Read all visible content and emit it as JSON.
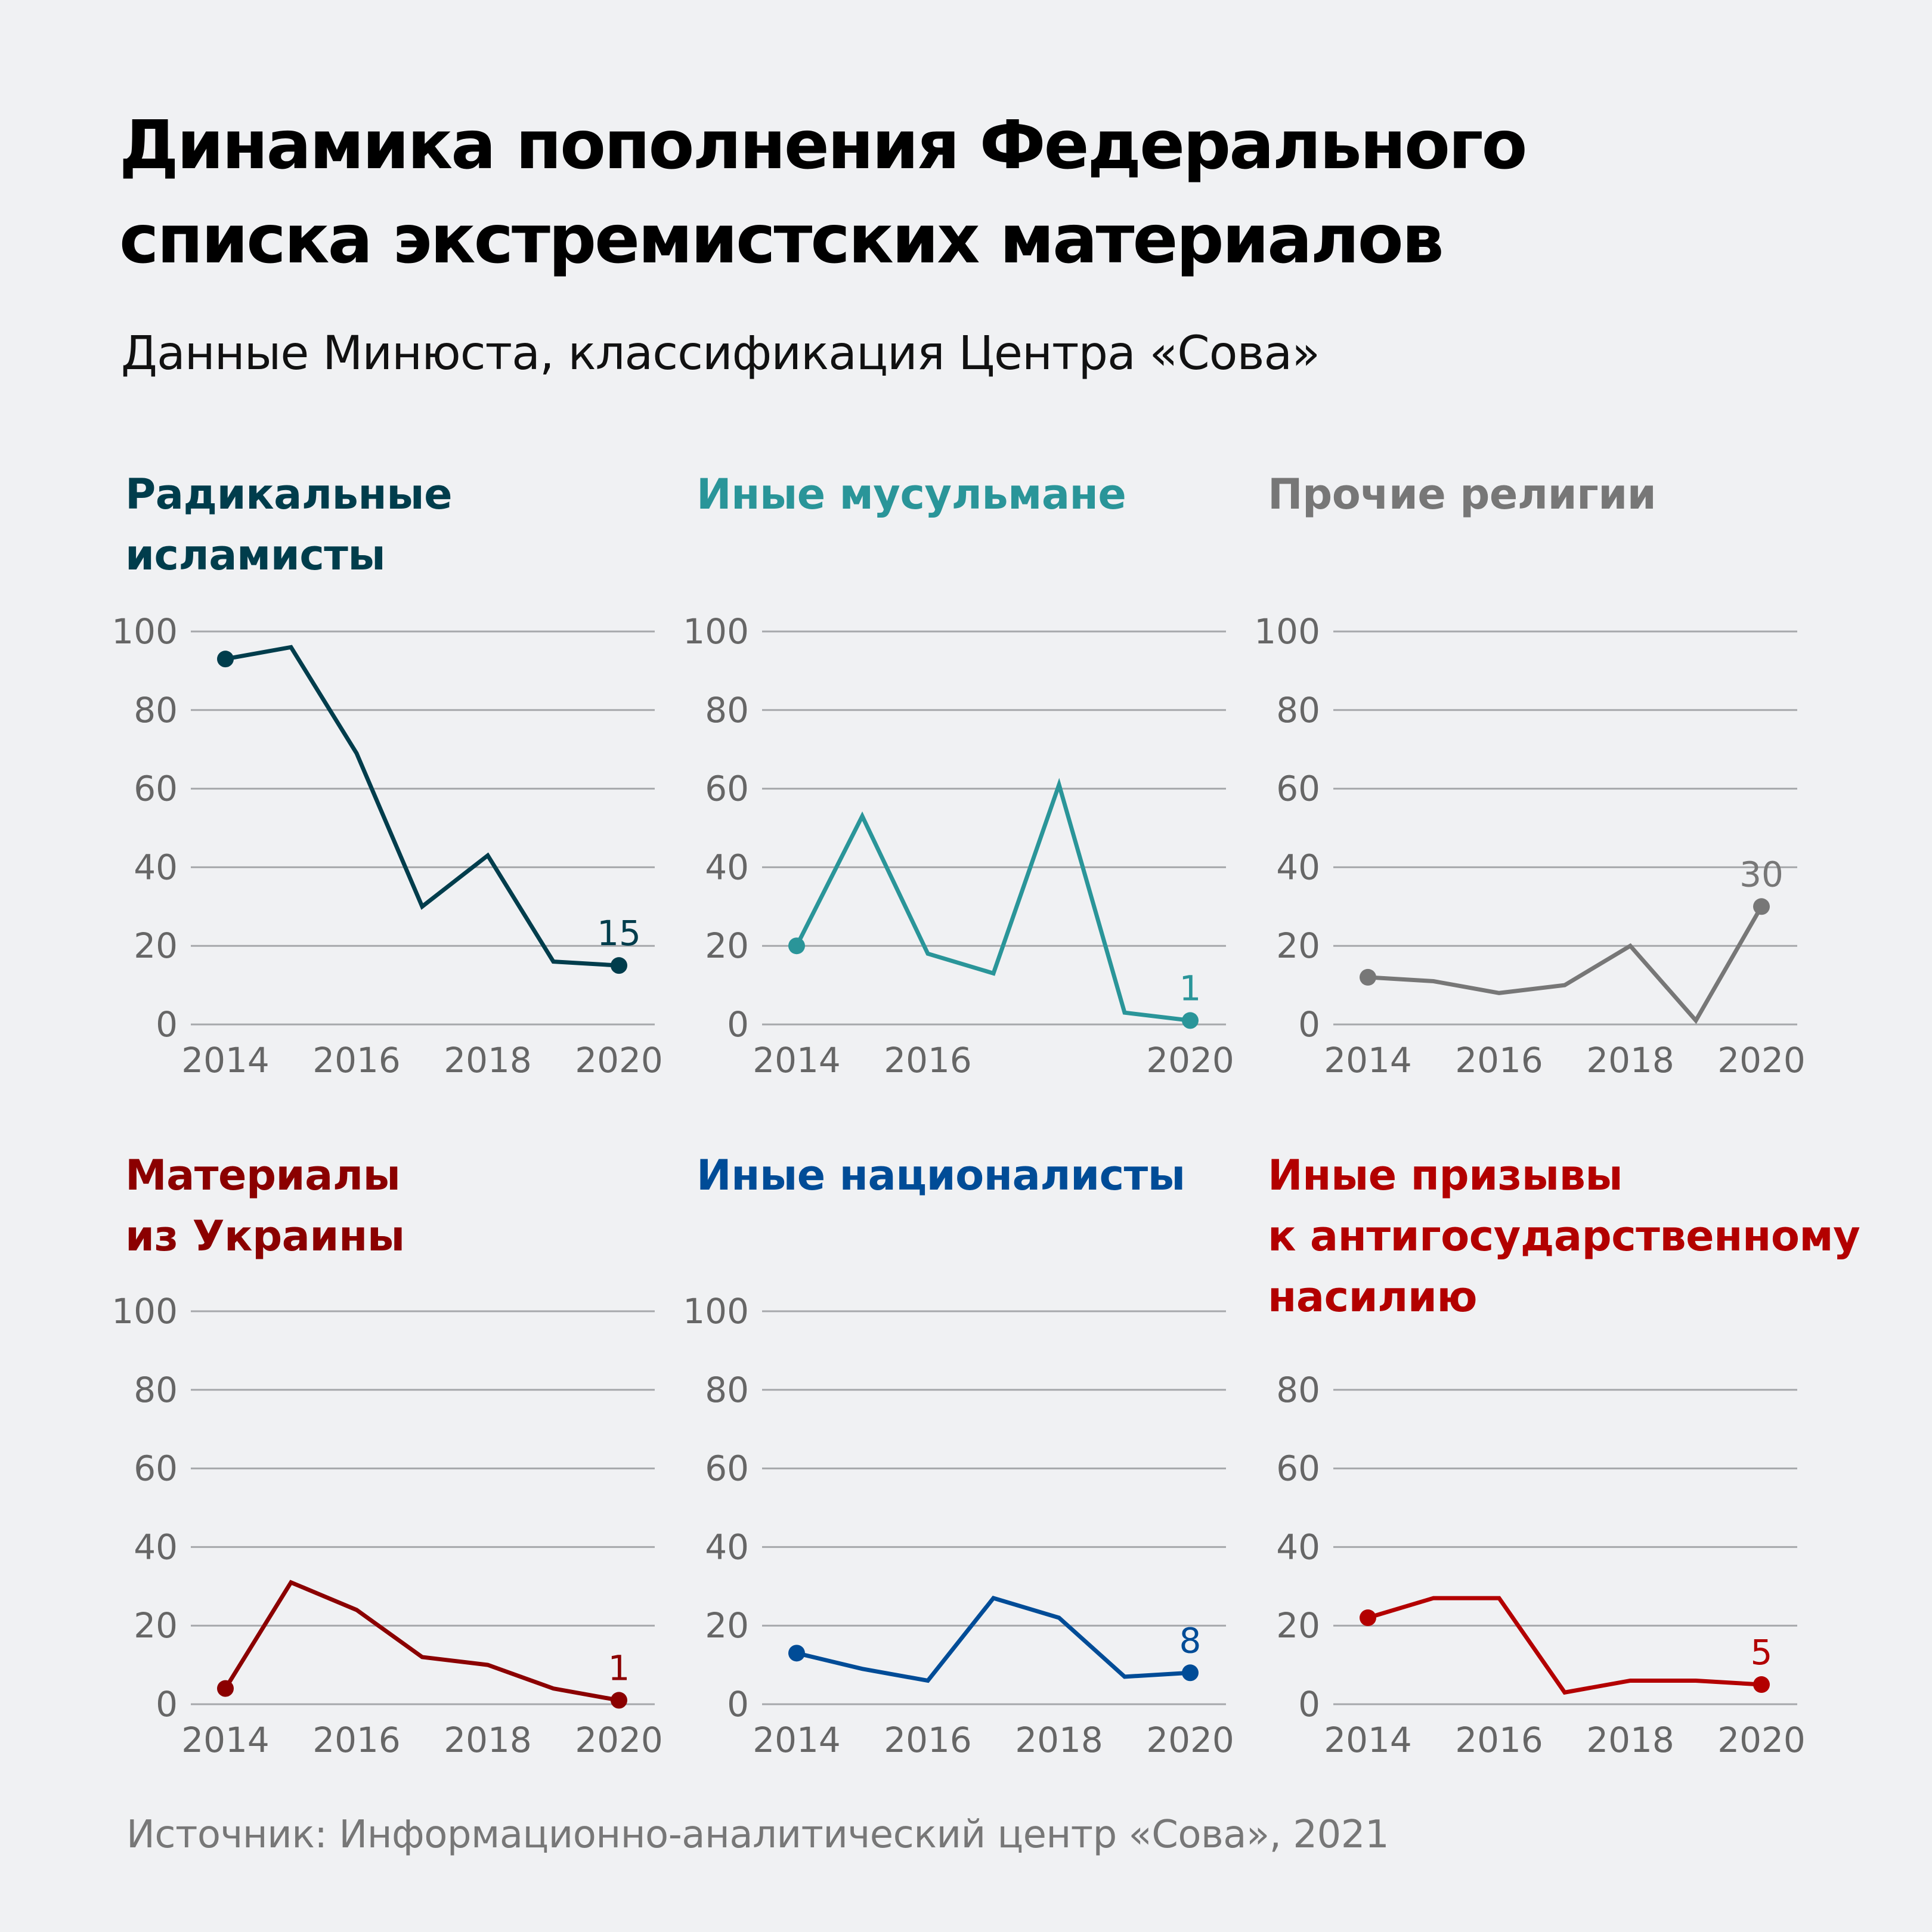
{
  "header": {
    "title_line1": "Динамика пополнения Федерального",
    "title_line2": "списка экстремистских материалов",
    "subtitle": "Данные Минюста, классификация Центра «Сова»"
  },
  "footer": {
    "source": "Источник: Информационно-аналитический центр «Сова», 2021"
  },
  "chart_data": [
    {
      "type": "line",
      "title": "Радикальные исламисты",
      "title_lines": [
        "Радикальные",
        "исламисты"
      ],
      "color": "#003d4c",
      "x": [
        2014,
        2015,
        2016,
        2017,
        2018,
        2019,
        2020
      ],
      "values": [
        93,
        96,
        69,
        30,
        43,
        16,
        15
      ],
      "end_label": "15",
      "xticks": [
        "2014",
        "2016",
        "2018",
        "2020"
      ],
      "yticks": [
        "0",
        "20",
        "40",
        "60",
        "80",
        "100"
      ],
      "ylim": [
        0,
        100
      ],
      "grid": true,
      "xlabel": "",
      "ylabel": ""
    },
    {
      "type": "line",
      "title": "Иные мусульмане",
      "title_lines": [
        "Иные мусульмане"
      ],
      "color": "#2a9599",
      "x": [
        2014,
        2015,
        2016,
        2017,
        2018,
        2019,
        2020
      ],
      "values": [
        20,
        53,
        18,
        13,
        61,
        3,
        1
      ],
      "end_label": "1",
      "xticks": [
        "2014",
        "2016",
        "",
        "2020"
      ],
      "yticks": [
        "0",
        "20",
        "40",
        "60",
        "80",
        "100"
      ],
      "ylim": [
        0,
        100
      ],
      "grid": true,
      "xlabel": "",
      "ylabel": ""
    },
    {
      "type": "line",
      "title": "Прочие религии",
      "title_lines": [
        "Прочие религии"
      ],
      "color": "#777777",
      "x": [
        2014,
        2015,
        2016,
        2017,
        2018,
        2019,
        2020
      ],
      "values": [
        12,
        11,
        8,
        10,
        20,
        1,
        30
      ],
      "end_label": "30",
      "xticks": [
        "2014",
        "2016",
        "2018",
        "2020"
      ],
      "yticks": [
        "0",
        "20",
        "40",
        "60",
        "80",
        "100"
      ],
      "ylim": [
        0,
        100
      ],
      "grid": true,
      "xlabel": "",
      "ylabel": ""
    },
    {
      "type": "line",
      "title": "Материалы из Украины",
      "title_lines": [
        "Материалы",
        "из Украины"
      ],
      "color": "#8b0000",
      "x": [
        2014,
        2015,
        2016,
        2017,
        2018,
        2019,
        2020
      ],
      "values": [
        4,
        31,
        24,
        12,
        10,
        4,
        1
      ],
      "end_label": "1",
      "xticks": [
        "2014",
        "2016",
        "2018",
        "2020"
      ],
      "yticks": [
        "0",
        "20",
        "40",
        "60",
        "80",
        "100"
      ],
      "ylim": [
        0,
        100
      ],
      "grid": true,
      "xlabel": "",
      "ylabel": ""
    },
    {
      "type": "line",
      "title": "Иные националисты",
      "title_lines": [
        "Иные националисты"
      ],
      "color": "#004c97",
      "x": [
        2014,
        2015,
        2016,
        2017,
        2018,
        2019,
        2020
      ],
      "values": [
        13,
        9,
        6,
        27,
        22,
        7,
        8
      ],
      "end_label": "8",
      "xticks": [
        "2014",
        "2016",
        "2018",
        "2020"
      ],
      "yticks": [
        "0",
        "20",
        "40",
        "60",
        "80",
        "100"
      ],
      "ylim": [
        0,
        100
      ],
      "grid": true,
      "xlabel": "",
      "ylabel": ""
    },
    {
      "type": "line",
      "title": "Иные призывы к антигосударственному насилию",
      "title_lines": [
        "Иные призывы",
        "к антигосударственному",
        "насилию"
      ],
      "color": "#b30000",
      "x": [
        2014,
        2015,
        2016,
        2017,
        2018,
        2019,
        2020
      ],
      "values": [
        22,
        27,
        27,
        3,
        6,
        6,
        5
      ],
      "end_label": "5",
      "xticks": [
        "2014",
        "2016",
        "2018",
        "2020"
      ],
      "yticks": [
        "0",
        "20",
        "40",
        "60",
        "80"
      ],
      "ylim": [
        0,
        100
      ],
      "grid": true,
      "xlabel": "",
      "ylabel": ""
    }
  ]
}
